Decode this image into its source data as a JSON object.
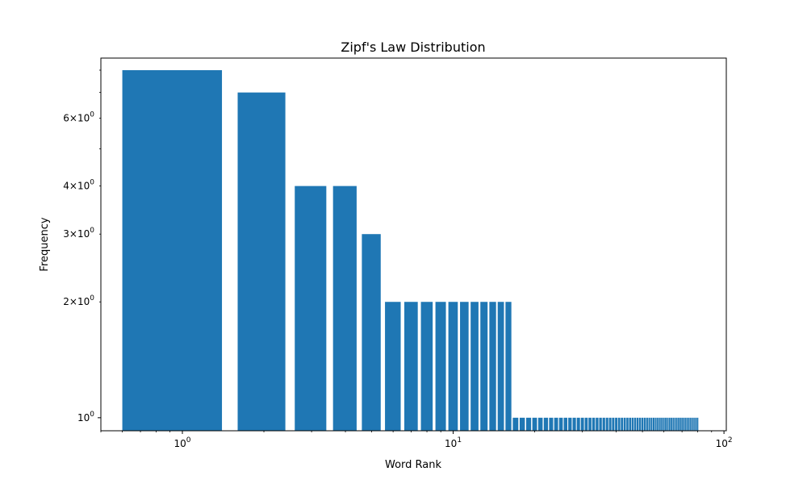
{
  "chart_data": {
    "type": "bar",
    "title": "Zipf's Law Distribution",
    "xlabel": "Word Rank",
    "ylabel": "Frequency",
    "xscale": "log",
    "yscale": "log",
    "xlim": [
      0.5,
      102
    ],
    "ylim": [
      0.925,
      8.6
    ],
    "bar_color": "#1f77b4",
    "x": [
      1,
      2,
      3,
      4,
      5,
      6,
      7,
      8,
      9,
      10,
      11,
      12,
      13,
      14,
      15,
      16,
      17,
      18,
      19,
      20,
      21,
      22,
      23,
      24,
      25,
      26,
      27,
      28,
      29,
      30,
      31,
      32,
      33,
      34,
      35,
      36,
      37,
      38,
      39,
      40,
      41,
      42,
      43,
      44,
      45,
      46,
      47,
      48,
      49,
      50,
      51,
      52,
      53,
      54,
      55,
      56,
      57,
      58,
      59,
      60,
      61,
      62,
      63,
      64,
      65,
      66,
      67,
      68,
      69,
      70,
      71,
      72,
      73,
      74,
      75,
      76,
      77,
      78,
      79,
      80
    ],
    "values": [
      8,
      7,
      4,
      4,
      3,
      2,
      2,
      2,
      2,
      2,
      2,
      2,
      2,
      2,
      2,
      2,
      1,
      1,
      1,
      1,
      1,
      1,
      1,
      1,
      1,
      1,
      1,
      1,
      1,
      1,
      1,
      1,
      1,
      1,
      1,
      1,
      1,
      1,
      1,
      1,
      1,
      1,
      1,
      1,
      1,
      1,
      1,
      1,
      1,
      1,
      1,
      1,
      1,
      1,
      1,
      1,
      1,
      1,
      1,
      1,
      1,
      1,
      1,
      1,
      1,
      1,
      1,
      1,
      1,
      1,
      1,
      1,
      1,
      1,
      1,
      1,
      1,
      1,
      1,
      1
    ],
    "x_major_ticks": [
      {
        "value": 1,
        "base": "10",
        "exp": "0"
      },
      {
        "value": 10,
        "base": "10",
        "exp": "1"
      },
      {
        "value": 100,
        "base": "10",
        "exp": "2"
      }
    ],
    "y_major_ticks": [
      {
        "value": 1,
        "mant": "",
        "base": "10",
        "exp": "0"
      }
    ],
    "y_minor_labeled_ticks": [
      {
        "value": 2,
        "mant": "2",
        "base": "10",
        "exp": "0"
      },
      {
        "value": 3,
        "mant": "3",
        "base": "10",
        "exp": "0"
      },
      {
        "value": 4,
        "mant": "4",
        "base": "10",
        "exp": "0"
      },
      {
        "value": 6,
        "mant": "6",
        "base": "10",
        "exp": "0"
      }
    ],
    "y_minor_unlabeled_ticks": [
      5,
      7,
      8
    ]
  }
}
